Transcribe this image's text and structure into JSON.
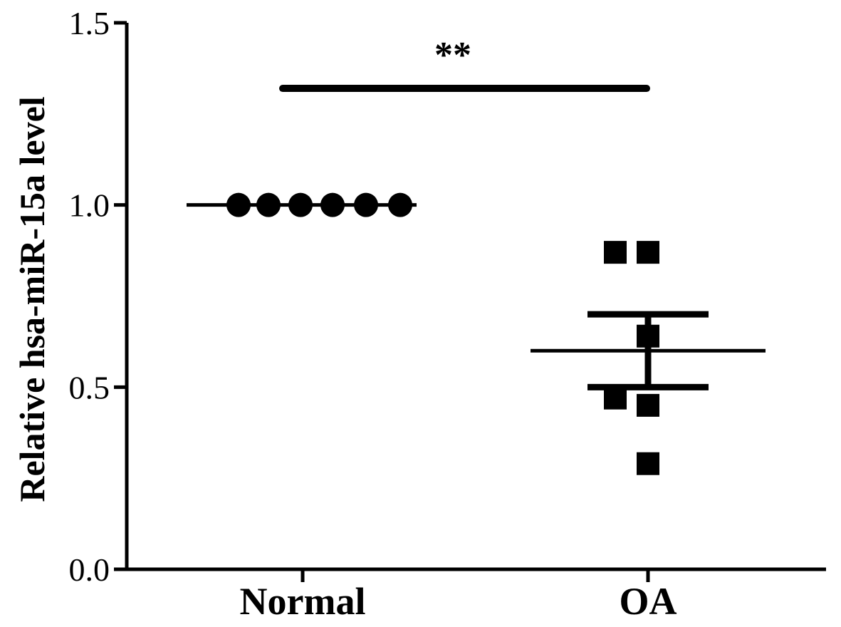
{
  "chart_data": {
    "type": "scatter",
    "title": "",
    "xlabel": "",
    "ylabel": "Relative hsa-miR-15a level",
    "ylim": [
      0,
      1.5
    ],
    "yticks": [
      "0.0",
      "0.5",
      "1.0",
      "1.5"
    ],
    "ytick_values": [
      0,
      0.5,
      1.0,
      1.5
    ],
    "categories": [
      "Normal",
      "OA"
    ],
    "groups": [
      {
        "category": "Normal",
        "marker": "circle",
        "values": [
          1.0,
          1.0,
          1.0,
          1.0,
          1.0,
          1.0
        ],
        "mean": 1.0,
        "sem": 0.0
      },
      {
        "category": "OA",
        "marker": "square",
        "values": [
          0.87,
          0.87,
          0.64,
          0.47,
          0.45,
          0.29
        ],
        "mean": 0.6,
        "sem": 0.1
      }
    ],
    "significance": {
      "label": "**",
      "between": [
        "Normal",
        "OA"
      ],
      "y": 1.32
    },
    "colors": {
      "ink": "#000000",
      "background": "#ffffff"
    }
  }
}
